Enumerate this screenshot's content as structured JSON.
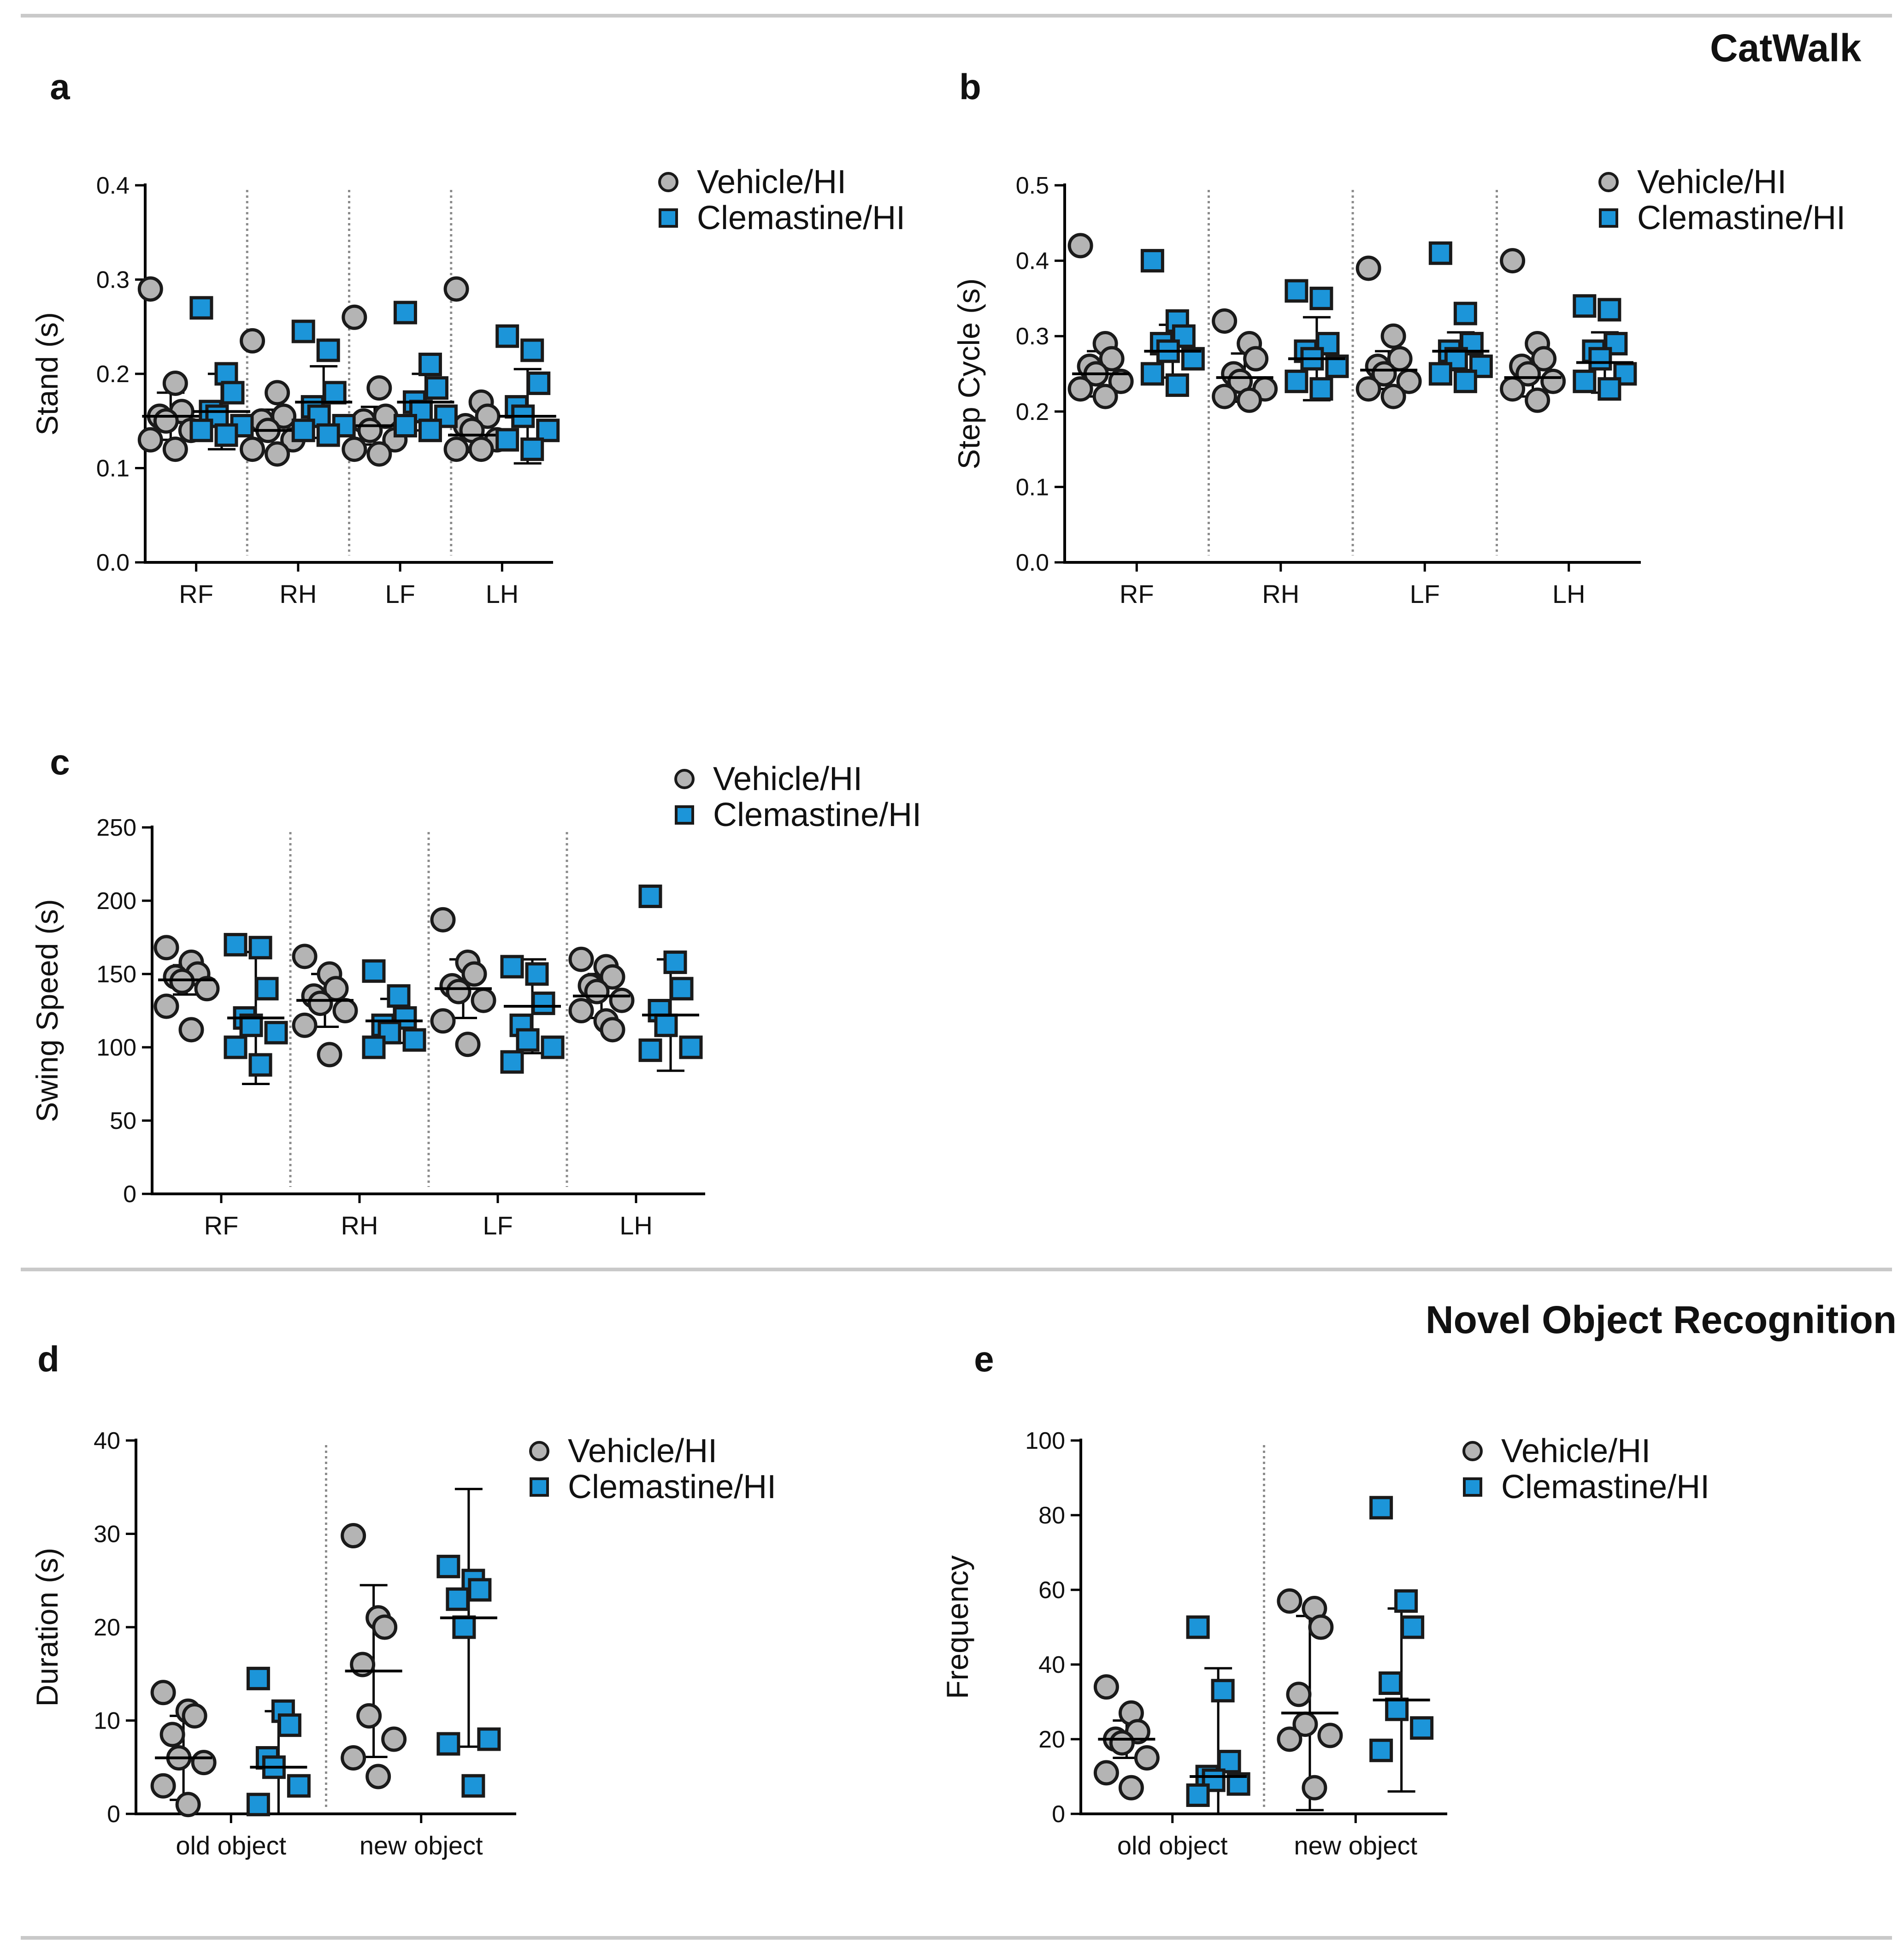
{
  "sections": {
    "catwalk": "CatWalk",
    "nor": "Novel Object Recognition"
  },
  "colors": {
    "vehicle_fill": "#b4b4b4",
    "clemastine_fill": "#1c95d9",
    "marker_stroke": "#1a1a1a",
    "axis": "#000000",
    "divider": "#8c8c8c",
    "separator": "#c9c9c9"
  },
  "chart_data": [
    {
      "panel": "a",
      "type": "scatter",
      "title": "",
      "xlabel": "",
      "ylabel": "Stand (s)",
      "ylim": [
        0,
        0.4
      ],
      "yticks": [
        "0.0",
        "0.1",
        "0.2",
        "0.3",
        "0.4"
      ],
      "categories": [
        "RF",
        "RH",
        "LF",
        "LH"
      ],
      "legend": [
        "Vehicle/HI",
        "Clemastine/HI"
      ],
      "series": [
        {
          "name": "Vehicle/HI",
          "marker": "circle",
          "points": [
            [
              0.29,
              0.19,
              0.16,
              0.155,
              0.15,
              0.14,
              0.13,
              0.12
            ],
            [
              0.235,
              0.18,
              0.155,
              0.15,
              0.14,
              0.13,
              0.12,
              0.115
            ],
            [
              0.26,
              0.185,
              0.155,
              0.15,
              0.14,
              0.13,
              0.12,
              0.115
            ],
            [
              0.29,
              0.17,
              0.155,
              0.145,
              0.14,
              0.13,
              0.12,
              0.12
            ]
          ],
          "mean": [
            0.155,
            0.14,
            0.145,
            0.135
          ],
          "sd": [
            0.025,
            0.022,
            0.02,
            0.018
          ]
        },
        {
          "name": "Clemastine/HI",
          "marker": "square",
          "points": [
            [
              0.27,
              0.2,
              0.18,
              0.16,
              0.155,
              0.145,
              0.14,
              0.135
            ],
            [
              0.245,
              0.225,
              0.18,
              0.165,
              0.155,
              0.145,
              0.14,
              0.135
            ],
            [
              0.265,
              0.21,
              0.185,
              0.17,
              0.16,
              0.155,
              0.145,
              0.14
            ],
            [
              0.24,
              0.225,
              0.19,
              0.165,
              0.155,
              0.14,
              0.13,
              0.12
            ]
          ],
          "mean": [
            0.16,
            0.17,
            0.17,
            0.155
          ],
          "sd": [
            0.04,
            0.038,
            0.03,
            0.05
          ]
        }
      ]
    },
    {
      "panel": "b",
      "type": "scatter",
      "title": "",
      "xlabel": "",
      "ylabel": "Step Cycle (s)",
      "ylim": [
        0,
        0.5
      ],
      "yticks": [
        "0.0",
        "0.1",
        "0.2",
        "0.3",
        "0.4",
        "0.5"
      ],
      "categories": [
        "RF",
        "RH",
        "LF",
        "LH"
      ],
      "legend": [
        "Vehicle/HI",
        "Clemastine/HI"
      ],
      "series": [
        {
          "name": "Vehicle/HI",
          "marker": "circle",
          "points": [
            [
              0.42,
              0.29,
              0.27,
              0.26,
              0.25,
              0.24,
              0.23,
              0.22
            ],
            [
              0.32,
              0.29,
              0.27,
              0.25,
              0.24,
              0.23,
              0.22,
              0.215
            ],
            [
              0.39,
              0.3,
              0.27,
              0.26,
              0.25,
              0.24,
              0.23,
              0.22
            ],
            [
              0.4,
              0.29,
              0.27,
              0.26,
              0.25,
              0.24,
              0.23,
              0.215
            ]
          ],
          "mean": [
            0.25,
            0.245,
            0.255,
            0.245
          ],
          "sd": [
            0.03,
            0.032,
            0.025,
            0.025
          ]
        },
        {
          "name": "Clemastine/HI",
          "marker": "square",
          "points": [
            [
              0.4,
              0.32,
              0.3,
              0.29,
              0.28,
              0.27,
              0.25,
              0.235
            ],
            [
              0.36,
              0.35,
              0.29,
              0.28,
              0.27,
              0.26,
              0.24,
              0.23
            ],
            [
              0.41,
              0.33,
              0.29,
              0.28,
              0.27,
              0.26,
              0.25,
              0.24
            ],
            [
              0.34,
              0.335,
              0.29,
              0.28,
              0.27,
              0.25,
              0.24,
              0.23
            ]
          ],
          "mean": [
            0.28,
            0.27,
            0.28,
            0.265
          ],
          "sd": [
            0.035,
            0.055,
            0.025,
            0.04
          ]
        }
      ]
    },
    {
      "panel": "c",
      "type": "scatter",
      "title": "",
      "xlabel": "",
      "ylabel": "Swing Speed (s)",
      "ylim": [
        0,
        250
      ],
      "yticks": [
        "0",
        "50",
        "100",
        "150",
        "200",
        "250"
      ],
      "categories": [
        "RF",
        "RH",
        "LF",
        "LH"
      ],
      "legend": [
        "Vehicle/HI",
        "Clemastine/HI"
      ],
      "series": [
        {
          "name": "Vehicle/HI",
          "marker": "circle",
          "points": [
            [
              168,
              158,
              150,
              148,
              145,
              140,
              128,
              112
            ],
            [
              162,
              150,
              140,
              135,
              130,
              125,
              115,
              95
            ],
            [
              187,
              158,
              150,
              142,
              138,
              132,
              118,
              102
            ],
            [
              160,
              155,
              148,
              142,
              138,
              132,
              125,
              118,
              112
            ]
          ],
          "mean": [
            146,
            132,
            140,
            135
          ],
          "sd": [
            10,
            18,
            20,
            15
          ]
        },
        {
          "name": "Clemastine/HI",
          "marker": "square",
          "points": [
            [
              170,
              168,
              140,
              120,
              115,
              110,
              100,
              88
            ],
            [
              152,
              135,
              120,
              115,
              110,
              105,
              100
            ],
            [
              155,
              150,
              130,
              115,
              105,
              100,
              90
            ],
            [
              203,
              158,
              140,
              125,
              115,
              100,
              98
            ]
          ],
          "mean": [
            120,
            118,
            128,
            122
          ],
          "sd": [
            45,
            15,
            32,
            38
          ]
        }
      ]
    },
    {
      "panel": "d",
      "type": "scatter",
      "title": "",
      "xlabel": "",
      "ylabel": "Duration (s)",
      "ylim": [
        0,
        40
      ],
      "yticks": [
        "0",
        "10",
        "20",
        "30",
        "40"
      ],
      "categories": [
        "old object",
        "new object"
      ],
      "legend": [
        "Vehicle/HI",
        "Clemastine/HI"
      ],
      "series": [
        {
          "name": "Vehicle/HI",
          "marker": "circle",
          "points": [
            [
              13,
              11,
              10.5,
              8.5,
              6,
              5.5,
              3,
              1
            ],
            [
              29.8,
              21,
              20,
              16,
              10.5,
              8,
              6,
              4
            ]
          ],
          "mean": [
            6,
            15.3
          ],
          "sd": [
            4.5,
            9.2
          ]
        },
        {
          "name": "Clemastine/HI",
          "marker": "square",
          "points": [
            [
              14.5,
              11,
              9.5,
              6,
              5,
              3,
              1
            ],
            [
              26.5,
              25,
              24,
              23,
              20,
              8,
              7.5,
              3
            ]
          ],
          "mean": [
            5,
            21
          ],
          "sd": [
            6,
            13.8
          ]
        }
      ]
    },
    {
      "panel": "e",
      "type": "scatter",
      "title": "",
      "xlabel": "",
      "ylabel": "Frequency",
      "ylim": [
        0,
        100
      ],
      "yticks": [
        "0",
        "20",
        "40",
        "60",
        "80",
        "100"
      ],
      "categories": [
        "old object",
        "new object"
      ],
      "legend": [
        "Vehicle/HI",
        "Clemastine/HI"
      ],
      "series": [
        {
          "name": "Vehicle/HI",
          "marker": "circle",
          "points": [
            [
              34,
              27,
              22,
              20,
              19,
              15,
              11,
              7
            ],
            [
              57,
              55,
              50,
              32,
              24,
              21,
              20,
              7
            ]
          ],
          "mean": [
            20,
            27
          ],
          "sd": [
            5,
            26
          ]
        },
        {
          "name": "Clemastine/HI",
          "marker": "square",
          "points": [
            [
              50,
              33,
              14,
              10,
              9,
              8,
              5
            ],
            [
              82,
              57,
              50,
              35,
              28,
              23,
              17
            ]
          ],
          "mean": [
            10,
            30.5
          ],
          "sd": [
            29,
            24.5
          ]
        }
      ]
    }
  ]
}
